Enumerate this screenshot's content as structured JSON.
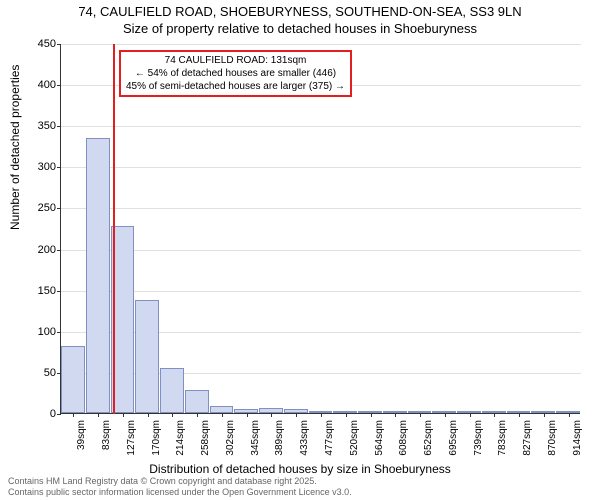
{
  "title_line1": "74, CAULFIELD ROAD, SHOEBURYNESS, SOUTHEND-ON-SEA, SS3 9LN",
  "title_line2": "Size of property relative to detached houses in Shoeburyness",
  "ylabel": "Number of detached properties",
  "xlabel": "Distribution of detached houses by size in Shoeburyness",
  "footnote_line1": "Contains HM Land Registry data © Crown copyright and database right 2025.",
  "footnote_line2": "Contains public sector information licensed under the Open Government Licence v3.0.",
  "chart": {
    "type": "histogram",
    "ylim": [
      0,
      450
    ],
    "ytick_step": 50,
    "categories": [
      "39sqm",
      "83sqm",
      "127sqm",
      "170sqm",
      "214sqm",
      "258sqm",
      "302sqm",
      "345sqm",
      "389sqm",
      "433sqm",
      "477sqm",
      "520sqm",
      "564sqm",
      "608sqm",
      "652sqm",
      "695sqm",
      "739sqm",
      "783sqm",
      "827sqm",
      "870sqm",
      "914sqm"
    ],
    "values": [
      82,
      335,
      228,
      138,
      55,
      28,
      8,
      5,
      6,
      5,
      3,
      2,
      2,
      2,
      2,
      1,
      1,
      1,
      1,
      1,
      1
    ],
    "bar_fill": "#d0d9f0",
    "bar_border": "#8090c0",
    "grid_color": "#e0e0e0",
    "axis_color": "#333333",
    "background_color": "#ffffff",
    "marker": {
      "x_index": 2.1,
      "color": "#e02020",
      "callout_line1": "74 CAULFIELD ROAD: 131sqm",
      "callout_line2": "← 54% of detached houses are smaller (446)",
      "callout_line3": "45% of semi-detached houses are larger (375) →"
    },
    "title_fontsize": 13,
    "label_fontsize": 12,
    "tick_fontsize": 10
  }
}
